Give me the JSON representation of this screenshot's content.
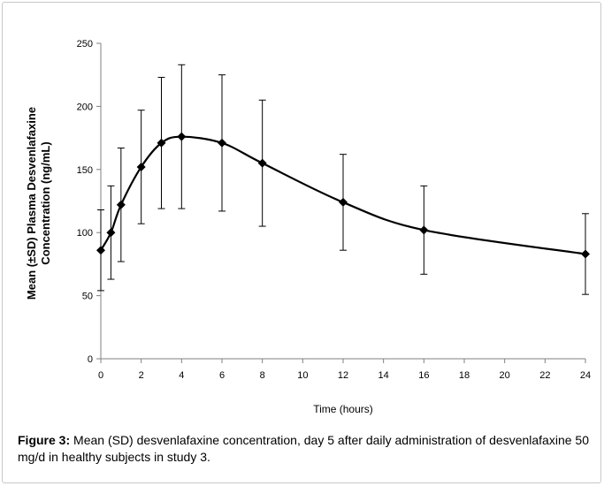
{
  "chart_data": {
    "type": "line",
    "x": [
      0,
      0.5,
      1,
      2,
      3,
      4,
      6,
      8,
      12,
      16,
      24
    ],
    "series": [
      {
        "values": [
          86,
          100,
          122,
          152,
          171,
          176,
          171,
          155,
          124,
          102,
          83
        ],
        "error_sd": [
          32,
          37,
          45,
          45,
          52,
          57,
          54,
          50,
          38,
          35,
          32
        ]
      }
    ],
    "xlabel": "Time (hours)",
    "ylabel_lines": [
      "Mean (±SD) Plasma Desvenlafaxine",
      "Concentration (ng/mL)"
    ],
    "xlim": [
      0,
      24
    ],
    "ylim": [
      0,
      250
    ],
    "x_ticks": [
      0,
      2,
      4,
      6,
      8,
      10,
      12,
      14,
      16,
      18,
      20,
      22,
      24
    ],
    "y_ticks": [
      0,
      50,
      100,
      150,
      200,
      250
    ],
    "grid": false,
    "marker": "diamond",
    "line_style": "smooth"
  },
  "caption": {
    "label": "Figure 3:",
    "text": "Mean (SD) desvenlafaxine concentration, day 5 after daily administration of desvenlafaxine 50 mg/d in healthy subjects in study 3."
  }
}
